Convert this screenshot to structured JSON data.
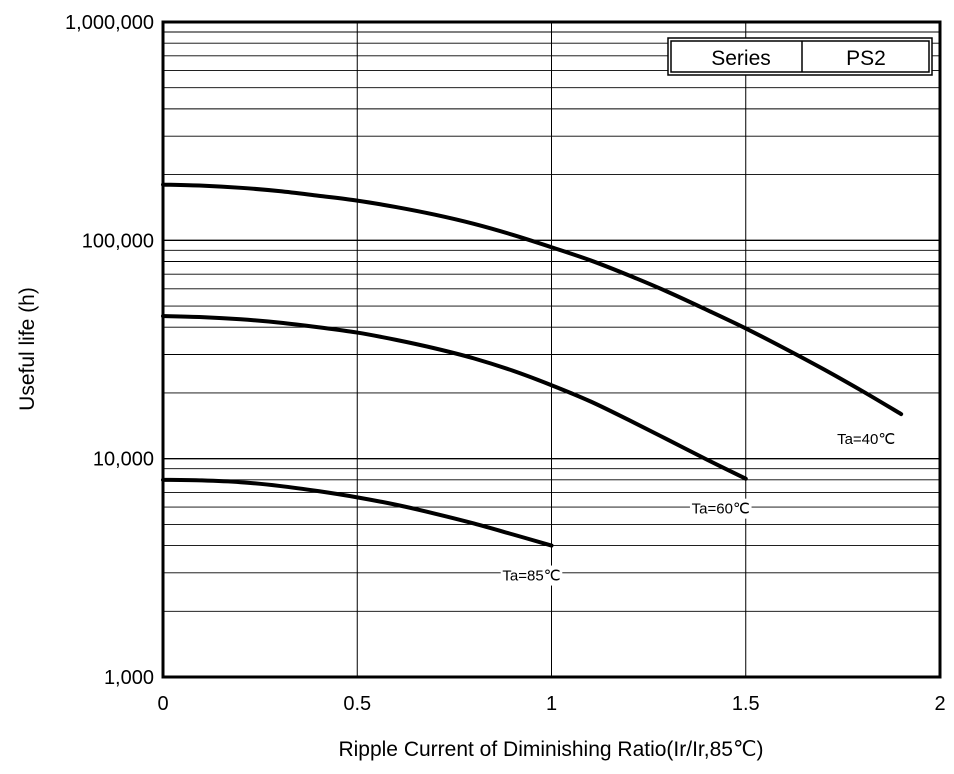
{
  "chart_data": {
    "type": "line",
    "xlabel": "Ripple Current of Diminishing Ratio(Ir/Ir,85℃)",
    "ylabel": "Useful life (h)",
    "xlim": [
      0,
      2
    ],
    "ylim": [
      1000,
      1000000
    ],
    "yscale": "log",
    "grid": true,
    "x_ticks": [
      0,
      0.5,
      1,
      1.5,
      2
    ],
    "x_tick_labels": [
      "0",
      "0.5",
      "1",
      "1.5",
      "2"
    ],
    "y_ticks": [
      1000,
      10000,
      100000,
      1000000
    ],
    "y_tick_labels": [
      "1,000",
      "10,000",
      "100,000",
      "1,000,000"
    ],
    "legend_table": {
      "position": "top-right",
      "key": "Series",
      "value": "PS2"
    },
    "series": [
      {
        "name": "Ta=40℃",
        "x": [
          0,
          0.1,
          0.2,
          0.3,
          0.4,
          0.5,
          0.6,
          0.7,
          0.8,
          0.9,
          1.0,
          1.1,
          1.2,
          1.3,
          1.4,
          1.5,
          1.6,
          1.7,
          1.8,
          1.9
        ],
        "values": [
          180000,
          178000,
          174000,
          168000,
          160000,
          152000,
          142000,
          131000,
          119000,
          106000,
          93000,
          81000,
          69000,
          58000,
          48000,
          39500,
          32000,
          25700,
          20400,
          16000
        ]
      },
      {
        "name": "Ta=60℃",
        "x": [
          0,
          0.1,
          0.2,
          0.3,
          0.4,
          0.5,
          0.6,
          0.7,
          0.8,
          0.9,
          1.0,
          1.1,
          1.2,
          1.3,
          1.4,
          1.5
        ],
        "values": [
          45000,
          44500,
          43500,
          42000,
          40000,
          37800,
          35000,
          32000,
          28800,
          25300,
          21700,
          18300,
          15000,
          12200,
          9900,
          8100
        ]
      },
      {
        "name": "Ta=85℃",
        "x": [
          0,
          0.1,
          0.2,
          0.3,
          0.4,
          0.5,
          0.6,
          0.7,
          0.8,
          0.9,
          1.0
        ],
        "values": [
          8000,
          7950,
          7800,
          7500,
          7100,
          6650,
          6150,
          5600,
          5050,
          4500,
          4000
        ]
      }
    ]
  }
}
